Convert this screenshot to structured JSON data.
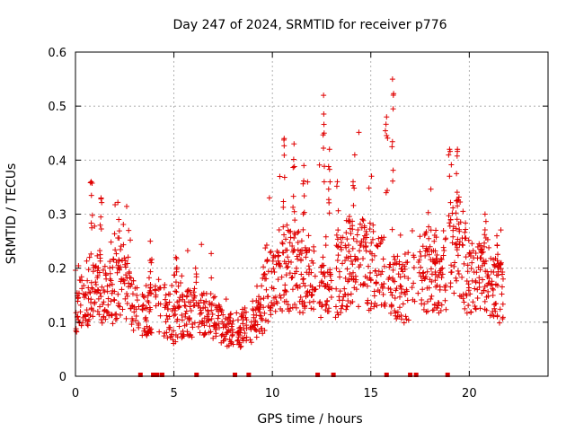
{
  "chart_data": {
    "type": "scatter",
    "title": "Day 247 of 2024, SRMTID for receiver p776",
    "xlabel": "GPS time / hours",
    "ylabel": "SRMTID / TECUs",
    "xlim": [
      0,
      24
    ],
    "ylim": [
      0,
      0.6
    ],
    "xticks": [
      "0",
      "5",
      "10",
      "15",
      "20"
    ],
    "yticks": [
      "0",
      "0.1",
      "0.2",
      "0.3",
      "0.4",
      "0.5",
      "0.6"
    ],
    "grid": true,
    "marker": "plus",
    "color": "#e00000",
    "series": [
      {
        "name": "SRMTID",
        "approximate_trend": {
          "x": [
            0.0,
            0.5,
            1.0,
            1.5,
            2.0,
            2.5,
            3.0,
            3.5,
            4.0,
            4.5,
            5.0,
            5.5,
            6.0,
            6.5,
            7.0,
            7.5,
            8.0,
            8.5,
            9.0,
            9.5,
            10.0,
            10.5,
            11.0,
            11.5,
            12.0,
            12.5,
            13.0,
            13.5,
            14.0,
            14.5,
            15.0,
            15.5,
            16.0,
            16.5,
            17.0,
            17.5,
            18.0,
            18.5,
            19.0,
            19.5,
            20.0,
            20.5,
            21.0,
            21.5,
            21.8
          ],
          "y": [
            0.13,
            0.14,
            0.18,
            0.15,
            0.16,
            0.18,
            0.12,
            0.11,
            0.13,
            0.12,
            0.1,
            0.11,
            0.12,
            0.11,
            0.11,
            0.09,
            0.08,
            0.09,
            0.1,
            0.13,
            0.18,
            0.2,
            0.2,
            0.19,
            0.17,
            0.18,
            0.17,
            0.19,
            0.22,
            0.21,
            0.2,
            0.19,
            0.18,
            0.16,
            0.17,
            0.19,
            0.2,
            0.18,
            0.22,
            0.24,
            0.18,
            0.17,
            0.19,
            0.16,
            0.14
          ]
        },
        "peaks": [
          {
            "x": 0.8,
            "y": 0.36
          },
          {
            "x": 1.3,
            "y": 0.33
          },
          {
            "x": 2.2,
            "y": 0.29
          },
          {
            "x": 3.8,
            "y": 0.25
          },
          {
            "x": 5.1,
            "y": 0.22
          },
          {
            "x": 6.1,
            "y": 0.2
          },
          {
            "x": 10.6,
            "y": 0.44
          },
          {
            "x": 11.1,
            "y": 0.43
          },
          {
            "x": 11.6,
            "y": 0.39
          },
          {
            "x": 12.6,
            "y": 0.52
          },
          {
            "x": 12.9,
            "y": 0.42
          },
          {
            "x": 13.3,
            "y": 0.36
          },
          {
            "x": 14.1,
            "y": 0.36
          },
          {
            "x": 15.8,
            "y": 0.48
          },
          {
            "x": 16.1,
            "y": 0.55
          },
          {
            "x": 18.3,
            "y": 0.27
          },
          {
            "x": 19.0,
            "y": 0.42
          },
          {
            "x": 19.4,
            "y": 0.42
          },
          {
            "x": 20.8,
            "y": 0.3
          },
          {
            "x": 21.4,
            "y": 0.26
          }
        ]
      },
      {
        "name": "data gaps",
        "x": [
          3.3,
          3.95,
          4.15,
          4.4,
          6.15,
          8.1,
          8.8,
          12.3,
          13.1,
          15.8,
          17.0,
          17.3,
          18.9
        ],
        "y": [
          0,
          0,
          0,
          0,
          0,
          0,
          0,
          0,
          0,
          0,
          0,
          0,
          0
        ]
      }
    ]
  }
}
